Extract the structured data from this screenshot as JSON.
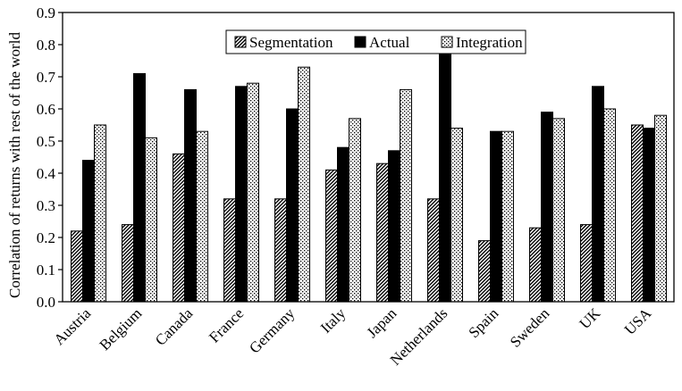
{
  "chart_data": {
    "type": "bar",
    "title": "",
    "xlabel": "",
    "ylabel": "Correlation of returns with rest of the world",
    "ylim": [
      0,
      0.9
    ],
    "yticks": [
      "0.0",
      "0.1",
      "0.2",
      "0.3",
      "0.4",
      "0.5",
      "0.6",
      "0.7",
      "0.8",
      "0.9"
    ],
    "grid": false,
    "legend": "top-center",
    "categories": [
      "Austria",
      "Belgium",
      "Canada",
      "France",
      "Germany",
      "Italy",
      "Japan",
      "Netherlands",
      "Spain",
      "Sweden",
      "UK",
      "USA"
    ],
    "series": [
      {
        "name": "Segmentation",
        "pattern": "diagonal-hatch",
        "color": "#000000",
        "values": [
          0.22,
          0.24,
          0.46,
          0.32,
          0.32,
          0.41,
          0.43,
          0.32,
          0.19,
          0.23,
          0.24,
          0.55
        ]
      },
      {
        "name": "Actual",
        "pattern": "solid",
        "color": "#000000",
        "values": [
          0.44,
          0.71,
          0.66,
          0.67,
          0.6,
          0.48,
          0.47,
          0.77,
          0.53,
          0.59,
          0.67,
          0.54
        ]
      },
      {
        "name": "Integration",
        "pattern": "dotted",
        "color": "#000000",
        "values": [
          0.55,
          0.51,
          0.53,
          0.68,
          0.73,
          0.57,
          0.66,
          0.54,
          0.53,
          0.57,
          0.6,
          0.58
        ]
      }
    ]
  }
}
